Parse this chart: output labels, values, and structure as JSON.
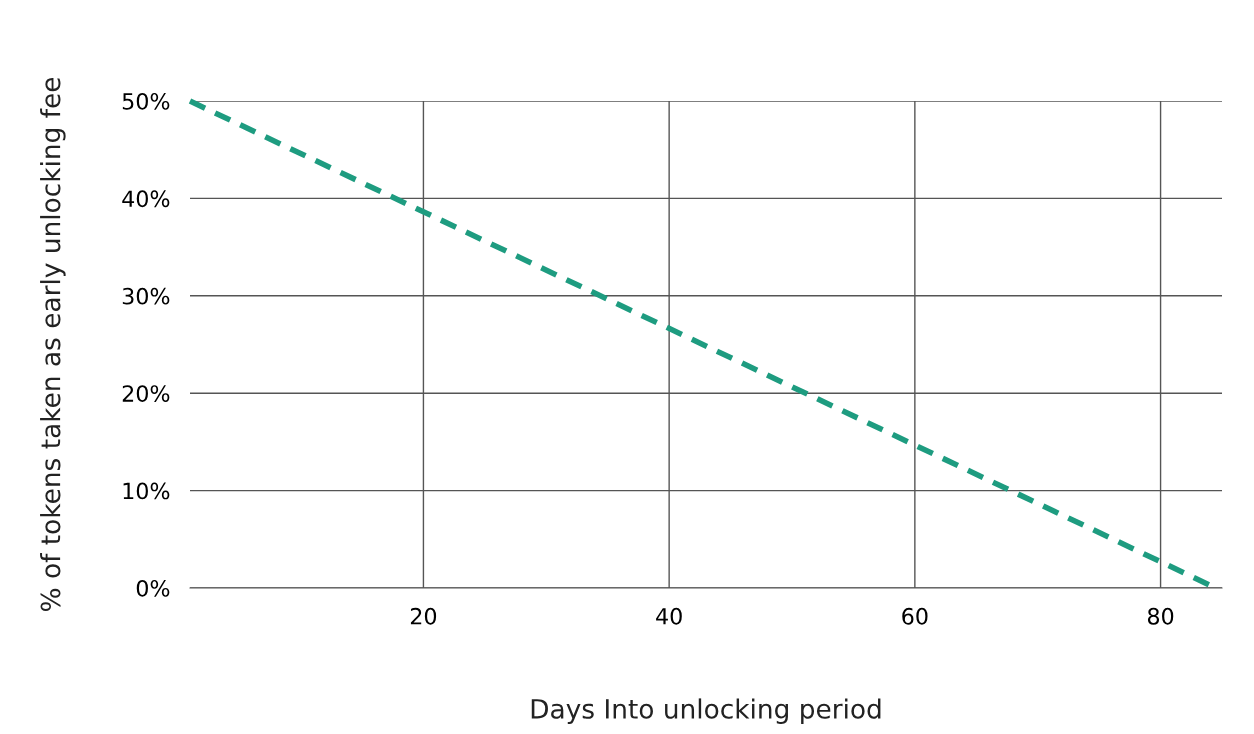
{
  "chart_data": {
    "type": "line",
    "xlabel": "Days Into unlocking period",
    "ylabel": "% of tokens taken as early unlocking fee",
    "x": [
      1,
      84.5
    ],
    "series": [
      {
        "color": "#1e9c80",
        "values": [
          50,
          0
        ]
      }
    ],
    "xlim": [
      1,
      85
    ],
    "xticks": [
      20,
      40,
      60,
      80
    ],
    "ylim": [
      0,
      50
    ],
    "yticks": [
      {
        "value": 0,
        "label": "0%"
      },
      {
        "value": 10,
        "label": "10%"
      },
      {
        "value": 20,
        "label": "20%"
      },
      {
        "value": 30,
        "label": "30%"
      },
      {
        "value": 40,
        "label": "40%"
      },
      {
        "value": 50,
        "label": "50%"
      }
    ],
    "grid": true,
    "line_style": "dashed",
    "marker": "none"
  }
}
